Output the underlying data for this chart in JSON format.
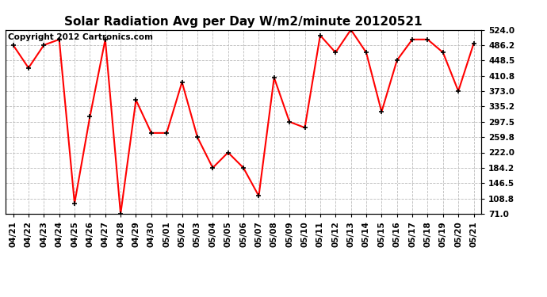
{
  "title": "Solar Radiation Avg per Day W/m2/minute 20120521",
  "copyright": "Copyright 2012 Cartronics.com",
  "labels": [
    "04/21",
    "04/22",
    "04/23",
    "04/24",
    "04/25",
    "04/26",
    "04/27",
    "04/28",
    "04/29",
    "04/30",
    "05/01",
    "05/02",
    "05/03",
    "05/04",
    "05/05",
    "05/06",
    "05/07",
    "05/08",
    "05/09",
    "05/10",
    "05/11",
    "05/12",
    "05/13",
    "05/14",
    "05/15",
    "05/16",
    "05/17",
    "05/18",
    "05/19",
    "05/20",
    "05/21"
  ],
  "values": [
    486.2,
    430.0,
    486.2,
    500.0,
    97.0,
    310.0,
    500.0,
    71.0,
    351.0,
    270.0,
    270.0,
    395.0,
    259.8,
    184.2,
    222.0,
    184.2,
    115.0,
    406.0,
    297.5,
    283.0,
    510.0,
    468.0,
    524.0,
    468.0,
    322.0,
    448.5,
    500.0,
    500.0,
    468.0,
    373.0,
    490.0
  ],
  "ylim": [
    71.0,
    524.0
  ],
  "yticks": [
    71.0,
    108.8,
    146.5,
    184.2,
    222.0,
    259.8,
    297.5,
    335.2,
    373.0,
    410.8,
    448.5,
    486.2,
    524.0
  ],
  "line_color": "red",
  "marker": "+",
  "marker_color": "black",
  "bg_color": "white",
  "grid_color": "#bbbbbb",
  "title_fontsize": 11,
  "tick_fontsize": 7.5,
  "copyright_fontsize": 7.5
}
